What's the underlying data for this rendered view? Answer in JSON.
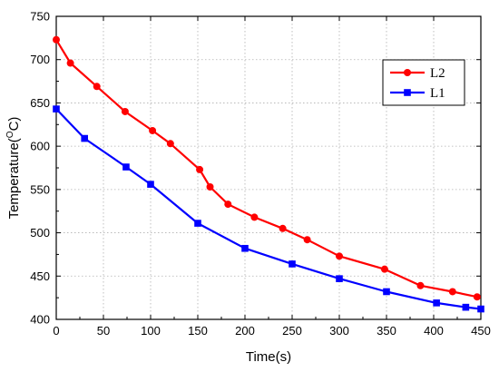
{
  "chart_data": {
    "type": "line",
    "title": "",
    "xlabel": "Time(s)",
    "ylabel_parts": {
      "before": "Temperature(",
      "superscript": "O",
      "after": "C)"
    },
    "xlim": [
      0,
      450
    ],
    "ylim": [
      400,
      750
    ],
    "xticks": [
      0,
      50,
      100,
      150,
      200,
      250,
      300,
      350,
      400,
      450
    ],
    "yticks": [
      400,
      450,
      500,
      550,
      600,
      650,
      700,
      750
    ],
    "grid": true,
    "legend_position": "top-right",
    "series": [
      {
        "name": "L2",
        "color": "#ff0000",
        "marker": "circle",
        "x": [
          0,
          15,
          43,
          73,
          102,
          121,
          152,
          163,
          182,
          210,
          240,
          266,
          300,
          348,
          386,
          420,
          446
        ],
        "y": [
          723,
          696,
          669,
          640,
          618,
          603,
          573,
          553,
          533,
          518,
          505,
          492,
          473,
          458,
          439,
          432,
          426
        ]
      },
      {
        "name": "L1",
        "color": "#0000ff",
        "marker": "square",
        "x": [
          0,
          30,
          74,
          100,
          150,
          200,
          250,
          300,
          350,
          403,
          434,
          450
        ],
        "y": [
          643,
          609,
          576,
          556,
          511,
          482,
          464,
          447,
          432,
          419,
          414,
          412
        ]
      }
    ]
  }
}
